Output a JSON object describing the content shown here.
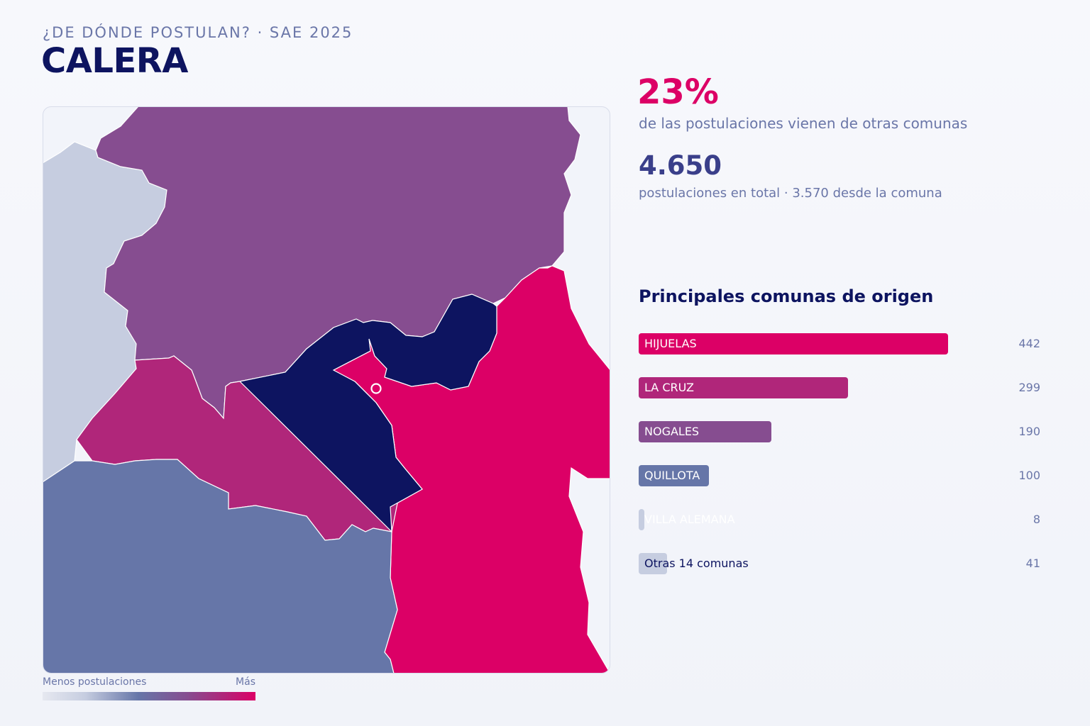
{
  "header": {
    "kicker": "¿DE DÓNDE POSTULAN? · SAE 2025",
    "title": "CALERA"
  },
  "stats": {
    "external_pct": "23%",
    "external_caption": "de las postulaciones vienen de otras comunas",
    "total": "4.650",
    "total_caption": "postulaciones en total · 3.570 desde la comuna"
  },
  "ranking": {
    "title": "Principales comunas de origen",
    "max_value": 442,
    "items": [
      {
        "label": "HIJUELAS",
        "value": 442,
        "display": "442",
        "color": "#dc0066",
        "label_color": "#ffffff"
      },
      {
        "label": "LA CRUZ",
        "value": 299,
        "display": "299",
        "color": "#b0267a",
        "label_color": "#ffffff"
      },
      {
        "label": "NOGALES",
        "value": 190,
        "display": "190",
        "color": "#864d90",
        "label_color": "#ffffff"
      },
      {
        "label": "QUILLOTA",
        "value": 100,
        "display": "100",
        "color": "#6676a8",
        "label_color": "#ffffff"
      },
      {
        "label": "VILLA ALEMANA",
        "value": 8,
        "display": "8",
        "color": "#c6cde0",
        "label_color": "#ffffff"
      },
      {
        "label": "Otras 14 comunas",
        "value": 41,
        "display": "41",
        "color": "#c6cde0",
        "label_color": "#0d1460"
      }
    ]
  },
  "legend": {
    "low": "Menos postulaciones",
    "high": "Más"
  },
  "map": {
    "regions": [
      {
        "id": "calera",
        "color": "#0d1460"
      },
      {
        "id": "hijuelas",
        "color": "#dc0066"
      },
      {
        "id": "la-cruz",
        "color": "#b0267a"
      },
      {
        "id": "nogales",
        "color": "#864d90"
      },
      {
        "id": "quillota",
        "color": "#6676a8"
      },
      {
        "id": "other",
        "color": "#c6cde0"
      }
    ],
    "school_marker_color": "#ffffff"
  }
}
